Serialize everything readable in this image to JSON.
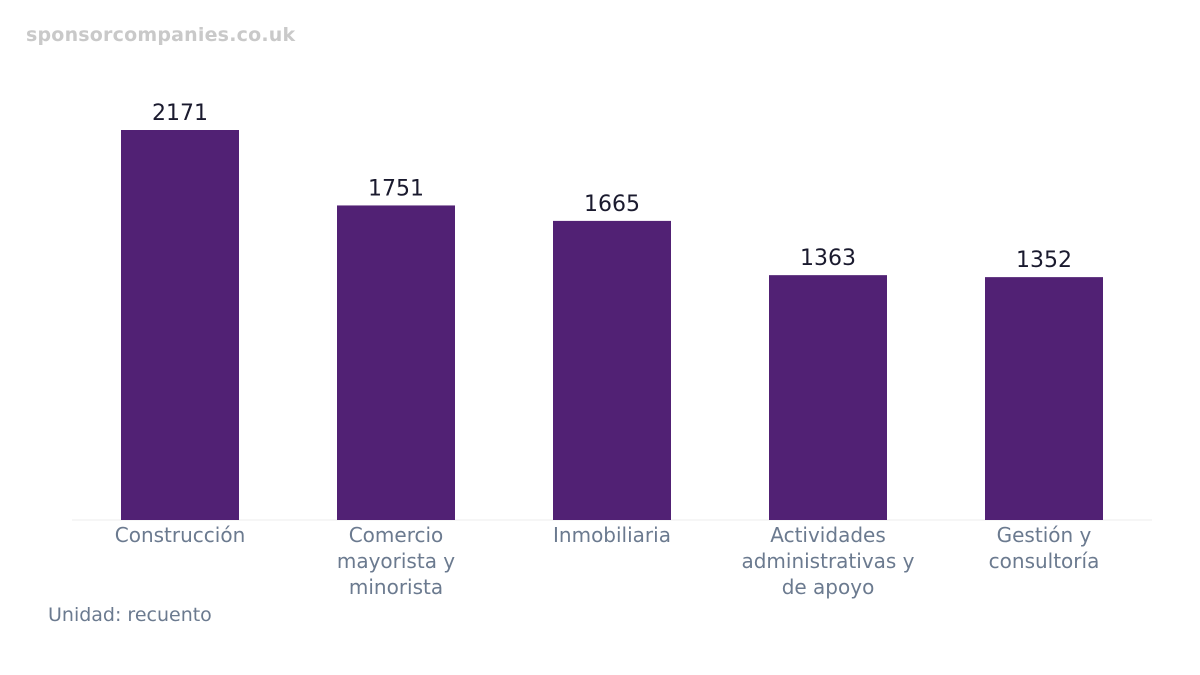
{
  "watermark": "sponsorcompanies.co.uk",
  "unit_note": "Unidad: recuento",
  "colors": {
    "bar": "#512174",
    "value_text": "#1a1a2e",
    "category_text": "#6b7a8f",
    "baseline": "#eeeeee"
  },
  "chart_data": {
    "type": "bar",
    "categories": [
      [
        "Construcción"
      ],
      [
        "Comercio",
        "mayorista y",
        "minorista"
      ],
      [
        "Inmobiliaria"
      ],
      [
        "Actividades",
        "administrativas y",
        "de apoyo"
      ],
      [
        "Gestión y",
        "consultoría"
      ]
    ],
    "values": [
      2171,
      1751,
      1665,
      1363,
      1352
    ],
    "ylim": [
      0,
      2171
    ],
    "grid": false,
    "legend": "none"
  }
}
